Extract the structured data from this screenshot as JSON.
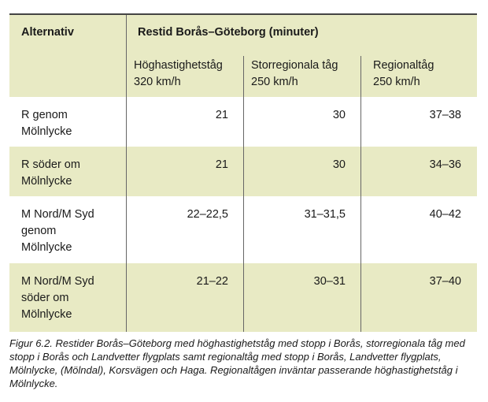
{
  "table": {
    "header": {
      "alternativ": "Alternativ",
      "group": "Restid Borås–Göteborg (minuter)",
      "columns": [
        {
          "name": "Höghastighetståg",
          "speed": "320 km/h"
        },
        {
          "name": "Storregionala tåg",
          "speed": "250 km/h"
        },
        {
          "name": "Regionaltåg",
          "speed": "250 km/h"
        }
      ]
    },
    "rows": [
      {
        "alt": [
          "R genom",
          "Mölnlycke"
        ],
        "values": [
          "21",
          "30",
          "37–38"
        ]
      },
      {
        "alt": [
          "R söder om",
          "Mölnlycke"
        ],
        "values": [
          "21",
          "30",
          "34–36"
        ]
      },
      {
        "alt": [
          "M Nord/M Syd",
          "genom",
          "Mölnlycke"
        ],
        "values": [
          "22–22,5",
          "31–31,5",
          "40–42"
        ]
      },
      {
        "alt": [
          "M Nord/M Syd",
          "söder om",
          "Mölnlycke"
        ],
        "values": [
          "21–22",
          "30–31",
          "37–40"
        ]
      }
    ],
    "colors": {
      "header_bg": "#e8eac4",
      "alt_row_bg": "#e8eac4"
    }
  },
  "caption": "Figur 6.2.  Restider Borås–Göteborg med höghastighetståg med stopp i Borås, storregionala tåg med stopp i Borås och Landvetter flygplats samt regionaltåg med stopp i Borås, Landvetter flygplats, Mölnlycke, (Mölndal), Korsvägen och Haga. Regionaltågen inväntar passerande höghastighetståg i Mölnlycke."
}
